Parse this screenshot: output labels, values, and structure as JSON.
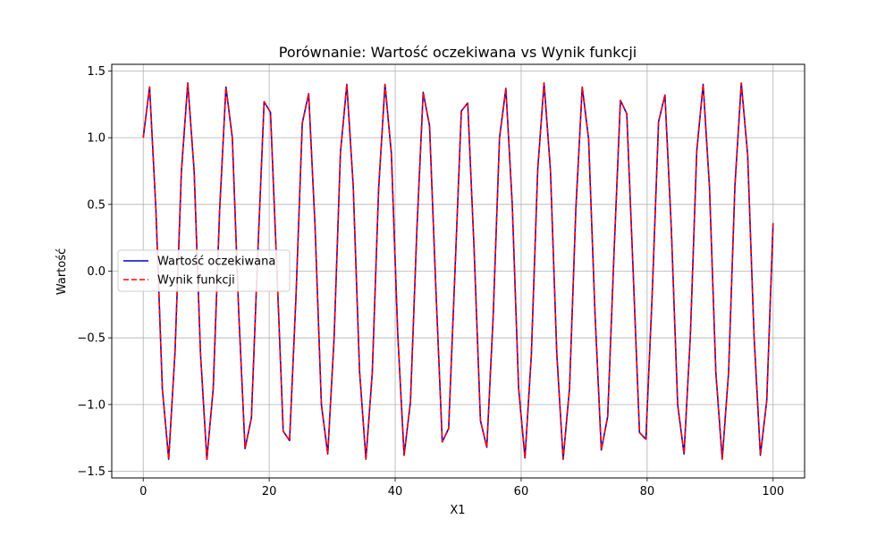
{
  "chart_data": {
    "type": "line",
    "title": "Porównanie: Wartość oczekiwana vs Wynik funkcji",
    "xlabel": "X1",
    "ylabel": "Wartość",
    "xlim": [
      -5,
      105
    ],
    "ylim": [
      -1.55,
      1.55
    ],
    "xticks": [
      0,
      20,
      40,
      60,
      80,
      100
    ],
    "xtick_labels": [
      "0",
      "20",
      "40",
      "60",
      "80",
      "100"
    ],
    "yticks": [
      -1.5,
      -1.0,
      -0.5,
      0.0,
      0.5,
      1.0,
      1.5
    ],
    "ytick_labels": [
      "−1.5",
      "−1.0",
      "−0.5",
      "0.0",
      "0.5",
      "1.0",
      "1.5"
    ],
    "grid": true,
    "legend_position": "center-left",
    "x": [
      0,
      1.0101,
      2.0202,
      3.0303,
      4.0404,
      5.0505,
      6.0606,
      7.0707,
      8.0808,
      9.0909,
      10.101,
      11.1111,
      12.1212,
      13.1313,
      14.1414,
      15.1515,
      16.1616,
      17.1717,
      18.1818,
      19.1919,
      20.202,
      21.2121,
      22.2222,
      23.2323,
      24.2424,
      25.2525,
      26.2626,
      27.2727,
      28.2828,
      29.2929,
      30.303,
      31.3131,
      32.3232,
      33.3333,
      34.3434,
      35.3535,
      36.3636,
      37.3737,
      38.3838,
      39.3939,
      40.404,
      41.4141,
      42.4242,
      43.4343,
      44.4444,
      45.4545,
      46.4646,
      47.4747,
      48.4848,
      49.4949,
      50.5051,
      51.5152,
      52.5253,
      53.5354,
      54.5455,
      55.5556,
      56.5657,
      57.5758,
      58.5859,
      59.596,
      60.6061,
      61.6162,
      62.6263,
      63.6364,
      64.6465,
      65.6566,
      66.6667,
      67.6768,
      68.6869,
      69.697,
      70.7071,
      71.7172,
      72.7273,
      73.7374,
      74.7475,
      75.7576,
      76.7677,
      77.7778,
      78.7879,
      79.798,
      80.8081,
      81.8182,
      82.8283,
      83.8384,
      84.8485,
      85.8586,
      86.8687,
      87.8788,
      88.8889,
      89.899,
      90.9091,
      91.9192,
      92.9293,
      93.9394,
      94.9495,
      95.9596,
      96.9697,
      97.9798,
      98.9899,
      100
    ],
    "series": [
      {
        "name": "Wartość oczekiwana",
        "color": "#0000cc",
        "style": "solid",
        "values": [
          1.0,
          1.38,
          0.45,
          -0.88,
          -1.41,
          -0.6,
          0.75,
          1.41,
          0.75,
          -0.62,
          -1.41,
          -0.88,
          0.45,
          1.38,
          1.0,
          -0.3,
          -1.33,
          -1.1,
          0.13,
          1.27,
          1.19,
          0.02,
          -1.2,
          -1.27,
          -0.2,
          1.11,
          1.33,
          0.34,
          -1.0,
          -1.37,
          -0.5,
          0.89,
          1.4,
          0.64,
          -0.75,
          -1.41,
          -0.76,
          0.62,
          1.4,
          0.88,
          -0.47,
          -1.38,
          -0.98,
          0.3,
          1.34,
          1.09,
          -0.14,
          -1.28,
          -1.18,
          0.0,
          1.2,
          1.26,
          0.17,
          -1.12,
          -1.32,
          -0.34,
          1.0,
          1.37,
          0.5,
          -0.88,
          -1.4,
          -0.63,
          0.76,
          1.41,
          0.76,
          -0.62,
          -1.41,
          -0.88,
          0.47,
          1.38,
          0.99,
          -0.31,
          -1.34,
          -1.09,
          0.14,
          1.28,
          1.18,
          0.0,
          -1.21,
          -1.26,
          -0.17,
          1.12,
          1.32,
          0.32,
          -1.0,
          -1.37,
          -0.48,
          0.9,
          1.4,
          0.63,
          -0.76,
          -1.41,
          -0.76,
          0.64,
          1.41,
          0.87,
          -0.48,
          -1.38,
          -0.97,
          0.36
        ]
      },
      {
        "name": "Wynik funkcji",
        "color": "#ff0000",
        "style": "dashed",
        "values": [
          1.0,
          1.38,
          0.45,
          -0.88,
          -1.41,
          -0.6,
          0.75,
          1.41,
          0.75,
          -0.62,
          -1.41,
          -0.88,
          0.45,
          1.38,
          1.0,
          -0.3,
          -1.33,
          -1.1,
          0.13,
          1.27,
          1.19,
          0.02,
          -1.2,
          -1.27,
          -0.2,
          1.11,
          1.33,
          0.34,
          -1.0,
          -1.37,
          -0.5,
          0.89,
          1.4,
          0.64,
          -0.75,
          -1.41,
          -0.76,
          0.62,
          1.4,
          0.88,
          -0.47,
          -1.38,
          -0.98,
          0.3,
          1.34,
          1.09,
          -0.14,
          -1.28,
          -1.18,
          0.0,
          1.2,
          1.26,
          0.17,
          -1.12,
          -1.32,
          -0.34,
          1.0,
          1.37,
          0.5,
          -0.88,
          -1.4,
          -0.63,
          0.76,
          1.41,
          0.76,
          -0.62,
          -1.41,
          -0.88,
          0.47,
          1.38,
          0.99,
          -0.31,
          -1.34,
          -1.09,
          0.14,
          1.28,
          1.18,
          0.0,
          -1.21,
          -1.26,
          -0.17,
          1.12,
          1.32,
          0.32,
          -1.0,
          -1.37,
          -0.48,
          0.9,
          1.4,
          0.63,
          -0.76,
          -1.41,
          -0.76,
          0.64,
          1.41,
          0.87,
          -0.48,
          -1.38,
          -0.97,
          0.36
        ]
      }
    ]
  }
}
